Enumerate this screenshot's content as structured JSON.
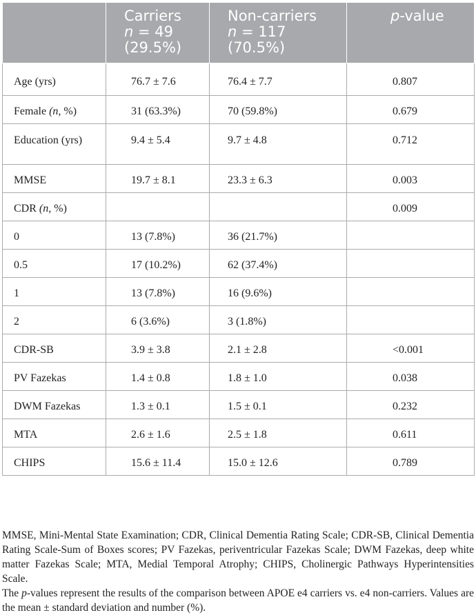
{
  "header": {
    "col1": "",
    "carriers": [
      "Carriers",
      "n = 49",
      "(29.5%)"
    ],
    "noncarriers": [
      "Non-carriers",
      "n = 117",
      "(70.5%)"
    ],
    "pvalue": "p-value"
  },
  "rows": [
    {
      "label": "Age (yrs)",
      "carriers": "76.7 ± 7.6",
      "noncarriers": "76.4 ± 7.7",
      "p": "0.807"
    },
    {
      "label": "Female (n, %)",
      "carriers": "31 (63.3%)",
      "noncarriers": "70 (59.8%)",
      "p": "0.679"
    },
    {
      "label": "Education (yrs)",
      "carriers": "9.4 ± 5.4",
      "noncarriers": "9.7 ± 4.8",
      "p": "0.712"
    },
    {
      "label": "MMSE",
      "carriers": "19.7 ± 8.1",
      "noncarriers": "23.3 ± 6.3",
      "p": "0.003"
    },
    {
      "label": "CDR (n, %)",
      "carriers": "",
      "noncarriers": "",
      "p": "0.009"
    },
    {
      "label": "0",
      "carriers": "13 (7.8%)",
      "noncarriers": "36 (21.7%)",
      "p": ""
    },
    {
      "label": "0.5",
      "carriers": "17 (10.2%)",
      "noncarriers": "62 (37.4%)",
      "p": ""
    },
    {
      "label": "1",
      "carriers": "13 (7.8%)",
      "noncarriers": "16 (9.6%)",
      "p": ""
    },
    {
      "label": "2",
      "carriers": "6 (3.6%)",
      "noncarriers": "3 (1.8%)",
      "p": ""
    },
    {
      "label": "CDR-SB",
      "carriers": "3.9 ± 3.8",
      "noncarriers": "2.1 ± 2.8",
      "p": "<0.001"
    },
    {
      "label": "PV Fazekas",
      "carriers": "1.4 ± 0.8",
      "noncarriers": "1.8 ± 1.0",
      "p": "0.038"
    },
    {
      "label": "DWM Fazekas",
      "carriers": "1.3 ± 0.1",
      "noncarriers": "1.5 ± 0.1",
      "p": "0.232"
    },
    {
      "label": "MTA",
      "carriers": "2.6 ± 1.6",
      "noncarriers": "2.5 ± 1.8",
      "p": "0.611"
    },
    {
      "label": "CHIPS",
      "carriers": "15.6 ± 11.4",
      "noncarriers": "15.0 ± 12.6",
      "p": "0.789"
    }
  ],
  "footnote": {
    "abbrev": "MMSE, Mini-Mental State Examination; CDR, Clinical Dementia Rating Scale; CDR-SB, Clinical Dementia Rating Scale-Sum of Boxes scores; PV Fazekas, periventricular Fazekas Scale; DWM Fazekas, deep white matter Fazekas Scale; MTA, Medial Temporal Atrophy; CHIPS, Cholinergic Pathways Hyperintensities Scale.",
    "note": "The p-values represent the results of the comparison between APOE e4 carriers vs. e4 non-carriers. Values are the mean ± standard deviation and number (%)."
  }
}
